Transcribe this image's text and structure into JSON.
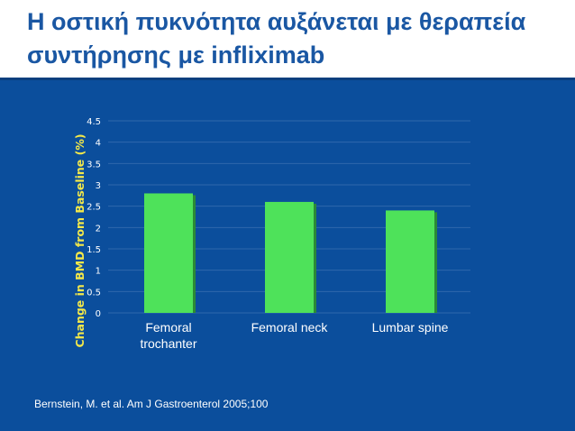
{
  "slide": {
    "title": "Η οστική πυκνότητα αυξάνεται με θεραπεία συντήρησης με infliximab",
    "citation": "Bernstein, M. et al. Am J Gastroenterol 2005;100"
  },
  "colors": {
    "title_text": "#1a57a3",
    "panel_background": "#0b4e9c",
    "bar_fill": "#4ee25a",
    "bar_shadow": "#2b8a36",
    "ylabel_text": "#f3e84a",
    "tick_text": "#ffffff",
    "gridline": "#2f68ad"
  },
  "chart_data": {
    "type": "bar",
    "categories": [
      "Femoral trochanter",
      "Femoral neck",
      "Lumbar spine"
    ],
    "values": [
      2.8,
      2.6,
      2.4
    ],
    "title": "",
    "xlabel": "",
    "ylabel": "Change in BMD from Baseline (%)",
    "ylim": [
      0,
      4.5
    ],
    "yticks": [
      "0",
      "0.5",
      "1",
      "1.5",
      "2",
      "2.5",
      "3",
      "3.5",
      "4",
      "4.5"
    ],
    "grid": true,
    "legend": "none"
  }
}
